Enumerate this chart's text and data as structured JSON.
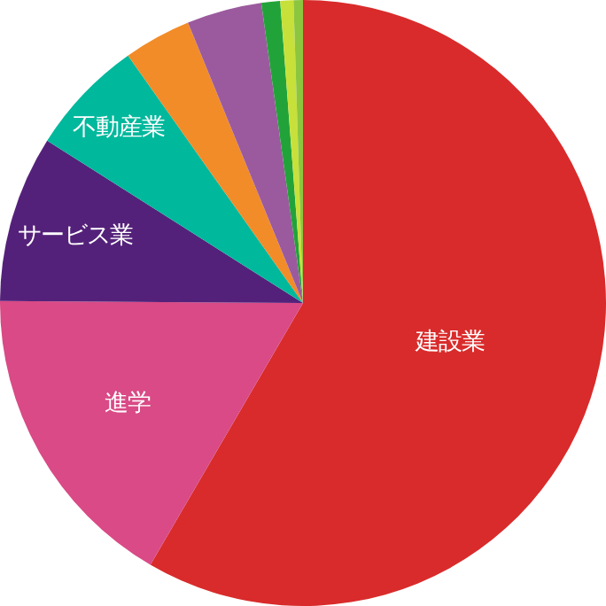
{
  "chart_data": {
    "type": "pie",
    "categories": [
      "建設業",
      "進学",
      "サービス業",
      "不動産業",
      null,
      null,
      null,
      null,
      null
    ],
    "values": [
      58.4,
      16.7,
      8.9,
      6.2,
      3.6,
      4.0,
      1.0,
      0.7,
      0.5
    ],
    "colors": [
      "#d92b2b",
      "#d94a86",
      "#54217a",
      "#00b89c",
      "#f28c28",
      "#9b5a9e",
      "#22a33a",
      "#c8e03a",
      "#8cc63f"
    ],
    "legend": false
  }
}
